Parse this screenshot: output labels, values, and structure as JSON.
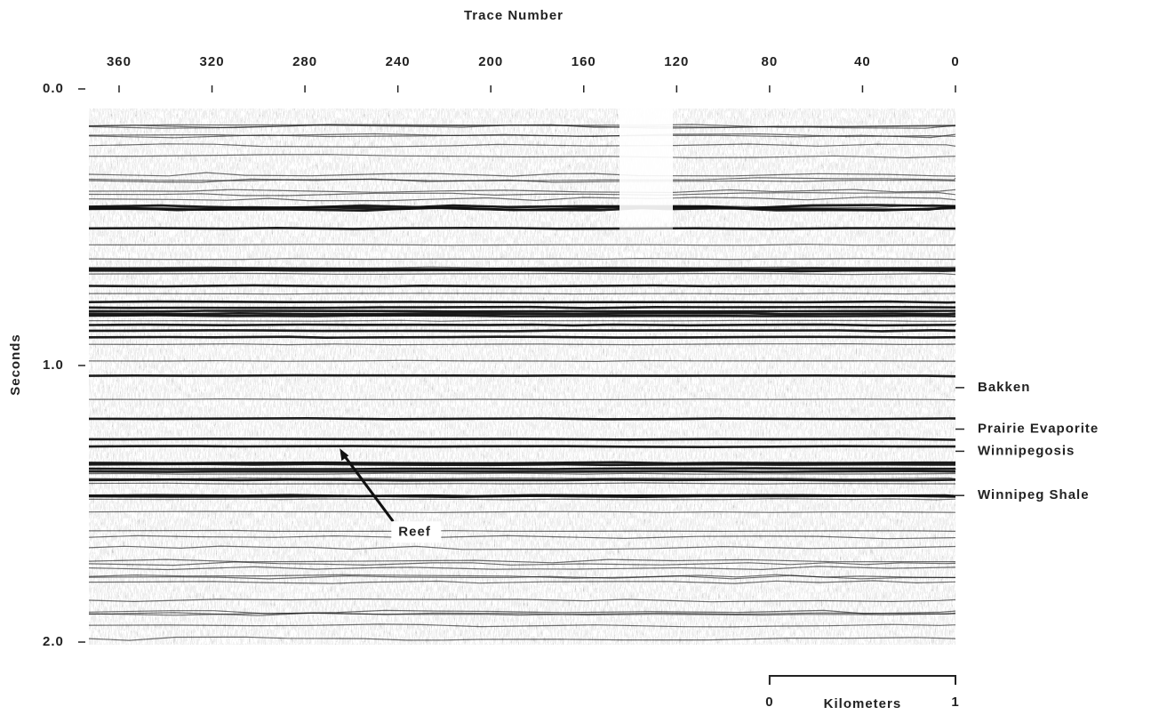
{
  "chart_data": {
    "type": "seismic",
    "x_label": "Trace Number",
    "y_label": "Seconds",
    "xlim": [
      373,
      0
    ],
    "xticks": [
      360,
      320,
      280,
      240,
      200,
      160,
      120,
      80,
      40,
      0
    ],
    "ylim": [
      0,
      2
    ],
    "yticks": [
      {
        "value": 0,
        "label": "0.0"
      },
      {
        "value": 1,
        "label": "1.0"
      },
      {
        "value": 2,
        "label": "2.0"
      }
    ],
    "annotations": [
      {
        "label": "Bakken",
        "time": 1.08
      },
      {
        "label": "Prairie Evaporite",
        "time": 1.23
      },
      {
        "label": "Winnipegosis",
        "time": 1.31
      },
      {
        "label": "Winnipeg Shale",
        "time": 1.47
      },
      {
        "label": "Reef",
        "time": 1.3,
        "trace": 265
      }
    ],
    "scale_bar": {
      "label": "Kilometers",
      "ticks": [
        0,
        1
      ],
      "traces": [
        80,
        0
      ]
    }
  }
}
